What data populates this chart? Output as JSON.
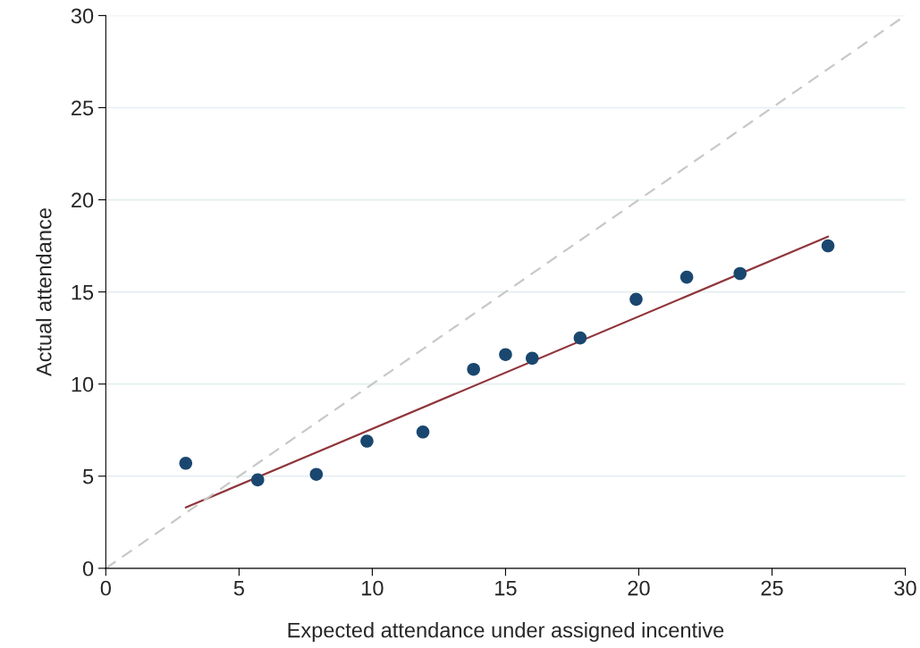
{
  "chart_data": {
    "type": "scatter",
    "xlabel": "Expected attendance under assigned incentive",
    "ylabel": "Actual attendance",
    "xlim": [
      0,
      30
    ],
    "ylim": [
      0,
      30
    ],
    "xticks": [
      0,
      5,
      10,
      15,
      20,
      25,
      30
    ],
    "yticks": [
      0,
      5,
      10,
      15,
      20,
      25,
      30
    ],
    "grid": "y",
    "series": [
      {
        "marker": "circle",
        "color": "#1a476f",
        "x": [
          3.0,
          5.7,
          7.9,
          9.8,
          11.9,
          13.8,
          15.0,
          16.0,
          17.8,
          19.9,
          21.8,
          23.8,
          27.1
        ],
        "values": [
          5.7,
          4.8,
          5.1,
          6.9,
          7.4,
          10.8,
          11.6,
          11.4,
          12.5,
          14.6,
          15.8,
          16.0,
          17.5
        ]
      },
      {
        "type": "line",
        "color": "#90353b",
        "line_style": "solid",
        "marker": "none",
        "x": [
          3.0,
          27.1
        ],
        "values": [
          3.3,
          18.0
        ]
      },
      {
        "type": "line",
        "color": "#c8c8c8",
        "line_style": "dashed",
        "marker": "none",
        "x": [
          0,
          30
        ],
        "values": [
          0,
          30
        ]
      }
    ]
  }
}
